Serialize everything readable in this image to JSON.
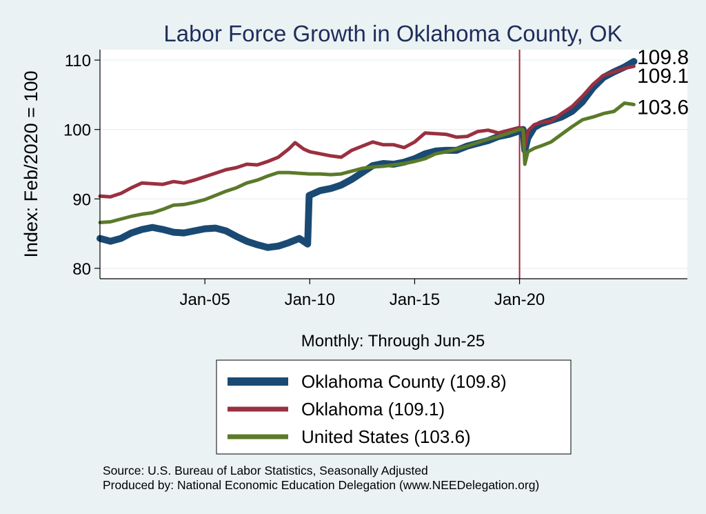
{
  "chart_data": {
    "type": "line",
    "title": "Labor Force Growth in Oklahoma  County, OK",
    "ylabel": "Index: Feb/2020 = 100",
    "xlabel": "Monthly: Through Jun-25",
    "ylim": [
      78.5,
      111.5
    ],
    "xlim": [
      2000.0,
      2028.0
    ],
    "y_ticks": [
      80,
      90,
      100,
      110
    ],
    "x_ticks": [
      {
        "value": 2005.0,
        "label": "Jan-05"
      },
      {
        "value": 2010.0,
        "label": "Jan-10"
      },
      {
        "value": 2015.0,
        "label": "Jan-15"
      },
      {
        "value": 2020.0,
        "label": "Jan-20"
      }
    ],
    "reference_line": {
      "x": 2020.0,
      "color": "#a3233a"
    },
    "grid": true,
    "series": [
      {
        "name": "Oklahoma  County",
        "legend": "Oklahoma  County (109.8)",
        "color": "#1a4a73",
        "width": 10,
        "end_label": "109.8",
        "points": [
          [
            2000.0,
            84.3
          ],
          [
            2000.5,
            83.9
          ],
          [
            2001.0,
            84.3
          ],
          [
            2001.5,
            85.1
          ],
          [
            2002.0,
            85.6
          ],
          [
            2002.5,
            85.9
          ],
          [
            2003.0,
            85.6
          ],
          [
            2003.5,
            85.2
          ],
          [
            2004.0,
            85.1
          ],
          [
            2004.5,
            85.4
          ],
          [
            2005.0,
            85.7
          ],
          [
            2005.5,
            85.8
          ],
          [
            2006.0,
            85.4
          ],
          [
            2006.5,
            84.6
          ],
          [
            2007.0,
            83.9
          ],
          [
            2007.5,
            83.4
          ],
          [
            2008.0,
            83.0
          ],
          [
            2008.5,
            83.2
          ],
          [
            2009.0,
            83.7
          ],
          [
            2009.5,
            84.3
          ],
          [
            2009.9,
            83.5
          ],
          [
            2009.97,
            90.5
          ],
          [
            2010.5,
            91.2
          ],
          [
            2011.0,
            91.5
          ],
          [
            2011.5,
            92.0
          ],
          [
            2012.0,
            92.8
          ],
          [
            2012.5,
            93.8
          ],
          [
            2013.0,
            94.8
          ],
          [
            2013.5,
            95.1
          ],
          [
            2014.0,
            95.0
          ],
          [
            2014.5,
            95.3
          ],
          [
            2015.0,
            95.8
          ],
          [
            2015.5,
            96.5
          ],
          [
            2016.0,
            96.9
          ],
          [
            2016.5,
            97.0
          ],
          [
            2017.0,
            97.0
          ],
          [
            2017.5,
            97.6
          ],
          [
            2018.0,
            98.0
          ],
          [
            2018.5,
            98.4
          ],
          [
            2019.0,
            99.0
          ],
          [
            2019.5,
            99.3
          ],
          [
            2020.0,
            99.8
          ],
          [
            2020.17,
            100.0
          ],
          [
            2020.25,
            97.0
          ],
          [
            2020.4,
            98.8
          ],
          [
            2020.7,
            100.3
          ],
          [
            2021.0,
            100.8
          ],
          [
            2021.5,
            101.3
          ],
          [
            2022.0,
            101.8
          ],
          [
            2022.5,
            102.6
          ],
          [
            2023.0,
            104.0
          ],
          [
            2023.5,
            106.0
          ],
          [
            2024.0,
            107.5
          ],
          [
            2024.5,
            108.3
          ],
          [
            2025.0,
            109.0
          ],
          [
            2025.45,
            109.8
          ]
        ]
      },
      {
        "name": "Oklahoma",
        "legend": "Oklahoma (109.1)",
        "color": "#9a3040",
        "width": 5,
        "end_label": "109.1",
        "points": [
          [
            2000.0,
            90.4
          ],
          [
            2000.5,
            90.3
          ],
          [
            2001.0,
            90.8
          ],
          [
            2001.5,
            91.6
          ],
          [
            2002.0,
            92.3
          ],
          [
            2002.5,
            92.2
          ],
          [
            2003.0,
            92.1
          ],
          [
            2003.5,
            92.5
          ],
          [
            2004.0,
            92.3
          ],
          [
            2004.5,
            92.7
          ],
          [
            2005.0,
            93.2
          ],
          [
            2005.5,
            93.7
          ],
          [
            2006.0,
            94.2
          ],
          [
            2006.5,
            94.5
          ],
          [
            2007.0,
            95.0
          ],
          [
            2007.5,
            94.9
          ],
          [
            2008.0,
            95.4
          ],
          [
            2008.5,
            96.0
          ],
          [
            2009.0,
            97.2
          ],
          [
            2009.3,
            98.1
          ],
          [
            2009.7,
            97.2
          ],
          [
            2010.0,
            96.8
          ],
          [
            2010.5,
            96.5
          ],
          [
            2011.0,
            96.2
          ],
          [
            2011.5,
            96.0
          ],
          [
            2012.0,
            97.0
          ],
          [
            2012.5,
            97.6
          ],
          [
            2013.0,
            98.2
          ],
          [
            2013.5,
            97.8
          ],
          [
            2014.0,
            97.8
          ],
          [
            2014.5,
            97.4
          ],
          [
            2015.0,
            98.2
          ],
          [
            2015.5,
            99.5
          ],
          [
            2016.0,
            99.4
          ],
          [
            2016.5,
            99.3
          ],
          [
            2017.0,
            98.9
          ],
          [
            2017.5,
            99.0
          ],
          [
            2018.0,
            99.7
          ],
          [
            2018.5,
            99.9
          ],
          [
            2019.0,
            99.5
          ],
          [
            2019.5,
            99.9
          ],
          [
            2020.0,
            100.3
          ],
          [
            2020.17,
            100.0
          ],
          [
            2020.25,
            97.5
          ],
          [
            2020.4,
            99.8
          ],
          [
            2020.7,
            100.7
          ],
          [
            2021.0,
            101.0
          ],
          [
            2021.5,
            101.2
          ],
          [
            2022.0,
            102.3
          ],
          [
            2022.5,
            103.3
          ],
          [
            2023.0,
            104.8
          ],
          [
            2023.5,
            106.5
          ],
          [
            2024.0,
            107.8
          ],
          [
            2024.5,
            108.3
          ],
          [
            2025.0,
            108.8
          ],
          [
            2025.45,
            109.1
          ]
        ]
      },
      {
        "name": "United States",
        "legend": "United States (103.6)",
        "color": "#5b7a2a",
        "width": 5,
        "end_label": "103.6",
        "points": [
          [
            2000.0,
            86.6
          ],
          [
            2000.5,
            86.7
          ],
          [
            2001.0,
            87.1
          ],
          [
            2001.5,
            87.5
          ],
          [
            2002.0,
            87.8
          ],
          [
            2002.5,
            88.0
          ],
          [
            2003.0,
            88.5
          ],
          [
            2003.5,
            89.1
          ],
          [
            2004.0,
            89.2
          ],
          [
            2004.5,
            89.5
          ],
          [
            2005.0,
            89.9
          ],
          [
            2005.5,
            90.5
          ],
          [
            2006.0,
            91.1
          ],
          [
            2006.5,
            91.6
          ],
          [
            2007.0,
            92.3
          ],
          [
            2007.5,
            92.7
          ],
          [
            2008.0,
            93.3
          ],
          [
            2008.5,
            93.8
          ],
          [
            2009.0,
            93.8
          ],
          [
            2009.5,
            93.7
          ],
          [
            2010.0,
            93.6
          ],
          [
            2010.5,
            93.6
          ],
          [
            2011.0,
            93.5
          ],
          [
            2011.5,
            93.6
          ],
          [
            2012.0,
            94.0
          ],
          [
            2012.5,
            94.4
          ],
          [
            2013.0,
            94.6
          ],
          [
            2013.5,
            94.7
          ],
          [
            2014.0,
            94.9
          ],
          [
            2014.5,
            95.1
          ],
          [
            2015.0,
            95.4
          ],
          [
            2015.5,
            95.8
          ],
          [
            2016.0,
            96.5
          ],
          [
            2016.5,
            96.8
          ],
          [
            2017.0,
            97.2
          ],
          [
            2017.5,
            97.6
          ],
          [
            2018.0,
            98.1
          ],
          [
            2018.5,
            98.6
          ],
          [
            2019.0,
            99.0
          ],
          [
            2019.5,
            99.5
          ],
          [
            2020.0,
            100.0
          ],
          [
            2020.17,
            100.0
          ],
          [
            2020.25,
            95.0
          ],
          [
            2020.4,
            96.8
          ],
          [
            2020.7,
            97.3
          ],
          [
            2021.0,
            97.6
          ],
          [
            2021.5,
            98.2
          ],
          [
            2022.0,
            99.3
          ],
          [
            2022.5,
            100.4
          ],
          [
            2023.0,
            101.4
          ],
          [
            2023.5,
            101.8
          ],
          [
            2024.0,
            102.3
          ],
          [
            2024.5,
            102.6
          ],
          [
            2025.0,
            103.8
          ],
          [
            2025.45,
            103.6
          ]
        ]
      }
    ]
  },
  "source": {
    "line1": "Source: U.S. Bureau of Labor Statistics, Seasonally Adjusted",
    "line2": "Produced by: National Economic Education Delegation (www.NEEDelegation.org)"
  }
}
